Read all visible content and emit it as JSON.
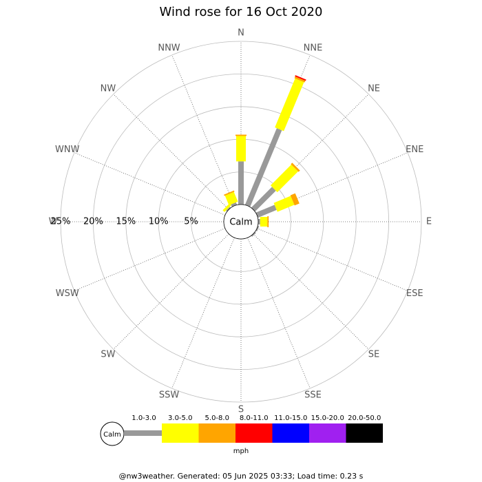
{
  "chart_data": {
    "type": "wind_rose",
    "title": "Wind rose for 16 Oct 2020",
    "directions": [
      "N",
      "NNE",
      "NE",
      "ENE",
      "E",
      "ESE",
      "SE",
      "SSE",
      "S",
      "SSW",
      "SW",
      "WSW",
      "W",
      "WNW",
      "NW",
      "NNW"
    ],
    "calm_label": "Calm",
    "unit": "mph",
    "rlim": [
      0,
      25
    ],
    "rticks": [
      {
        "value": 5,
        "label": "5%"
      },
      {
        "value": 10,
        "label": "10%"
      },
      {
        "value": 15,
        "label": "15%"
      },
      {
        "value": 20,
        "label": "20%"
      },
      {
        "value": 25,
        "label": "25%"
      }
    ],
    "series": [
      {
        "name": "1.0-3.0",
        "color": "#999999",
        "values": [
          6.6,
          12.7,
          4.5,
          3.1,
          0.3,
          0.2,
          0.2,
          0,
          0,
          0,
          0,
          0,
          0,
          0,
          0.2,
          0.4
        ]
      },
      {
        "name": "3.0-5.0",
        "color": "#ffff00",
        "values": [
          3.9,
          8.1,
          4.5,
          2.8,
          1.1,
          0,
          0,
          0,
          0,
          0,
          0,
          0,
          0,
          0,
          0.4,
          1.6
        ]
      },
      {
        "name": "5.0-8.0",
        "color": "#ffa500",
        "values": [
          0.2,
          0.3,
          0.3,
          0.8,
          0.2,
          0,
          0,
          0,
          0,
          0,
          0,
          0,
          0,
          0,
          0,
          0.2
        ]
      },
      {
        "name": "8.0-11.0",
        "color": "#ff0000",
        "values": [
          0,
          0.2,
          0,
          0,
          0,
          0,
          0,
          0,
          0,
          0,
          0,
          0,
          0,
          0,
          0,
          0
        ]
      },
      {
        "name": "11.0-15.0",
        "color": "#0000ff",
        "values": [
          0,
          0,
          0,
          0,
          0,
          0,
          0,
          0,
          0,
          0,
          0,
          0,
          0,
          0,
          0,
          0
        ]
      },
      {
        "name": "15.0-20.0",
        "color": "#a020f0",
        "values": [
          0,
          0,
          0,
          0,
          0,
          0,
          0,
          0,
          0,
          0,
          0,
          0,
          0,
          0,
          0,
          0
        ]
      },
      {
        "name": "20.0-50.0",
        "color": "#000000",
        "values": [
          0,
          0,
          0,
          0,
          0,
          0,
          0,
          0,
          0,
          0,
          0,
          0,
          0,
          0,
          0,
          0
        ]
      }
    ],
    "footer": "@nw3weather. Generated: 05 Jun 2025 03:33; Load time: 0.23 s"
  }
}
